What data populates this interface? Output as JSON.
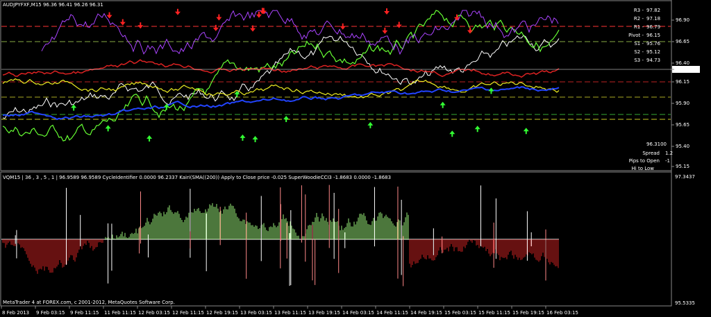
{
  "header": "AUDJPYFXF,M15  96.36 96.41 96.26 96.31",
  "pivots": [
    {
      "label": "R3 -",
      "value": "97.82"
    },
    {
      "label": "R2 -",
      "value": "97.18"
    },
    {
      "label": "R1 -",
      "value": "96.79"
    },
    {
      "label": "Pivot -",
      "value": "96.15"
    },
    {
      "label": "S1 -",
      "value": "95.76"
    },
    {
      "label": "S2 -",
      "value": "95.12"
    },
    {
      "label": "S3 -",
      "value": "94.73"
    }
  ],
  "price_axis": [
    "96.90",
    "96.65",
    "96.40",
    "96.31",
    "96.15",
    "95.90",
    "95.65",
    "95.40",
    "95.15"
  ],
  "info": {
    "price": "96.3100",
    "spread_label": "Spread",
    "spread": "1.2",
    "pips_label": "Pips to Open",
    "pips": "-1",
    "hilo_label": "Hi to Low"
  },
  "indicator_header": "VQM15 | 36 , 3 , 5 , 1 | 96.9589 96.9589 CycleIdentifier 0.0000 96.2337 Kairi(SMA((200)) Apply to Close price -0.025 SuperWoodieCCI3 -1.8683 0.0000 -1.8683",
  "indicator_axis": [
    "97.3437",
    "95.5335"
  ],
  "footer": "MetaTrader 4 at FOREX.com, c 2001-2012, MetaQuotes Software Corp.",
  "dates": [
    "8 Feb 2013",
    "9 Feb 03:15",
    "9 Feb 11:15",
    "11 Feb 11:15",
    "12 Feb 03:15",
    "12 Feb 11:15",
    "12 Feb 19:15",
    "13 Feb 03:15",
    "13 Feb 11:15",
    "13 Feb 19:15",
    "14 Feb 03:15",
    "14 Feb 11:15",
    "14 Feb 19:15",
    "15 Feb 03:15",
    "15 Feb 11:15",
    "15 Feb 19:15",
    "16 Feb 03:15"
  ]
}
